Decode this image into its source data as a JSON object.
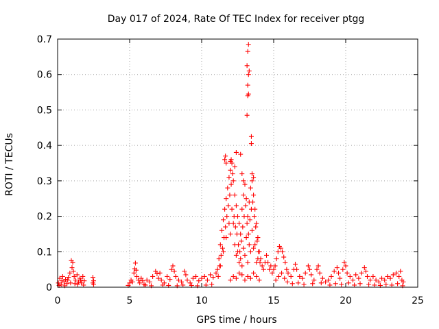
{
  "chart_data": {
    "type": "scatter",
    "title": "Day 017 of 2024, Rate Of TEC Index for receiver ptgg",
    "xlabel": "GPS time / hours",
    "ylabel": "ROTI / TECUs",
    "xlim": [
      0,
      25
    ],
    "ylim": [
      0,
      0.7
    ],
    "xticks": [
      0,
      5,
      10,
      15,
      20,
      25
    ],
    "xtick_labels": [
      "0",
      "5",
      "10",
      "15",
      "20",
      "25"
    ],
    "yticks": [
      0,
      0.1,
      0.2,
      0.3,
      0.4,
      0.5,
      0.6,
      0.7
    ],
    "ytick_labels": [
      "0",
      "0.1",
      "0.2",
      "0.3",
      "0.4",
      "0.5",
      "0.6",
      "0.7"
    ],
    "grid": true,
    "marker": "+",
    "series_color": "#ff0000",
    "series": [
      {
        "name": "ROTI",
        "points": [
          [
            0.05,
            0.012
          ],
          [
            0.15,
            0.025
          ],
          [
            0.25,
            0.008
          ],
          [
            0.35,
            0.03
          ],
          [
            0.45,
            0.015
          ],
          [
            0.55,
            0.022
          ],
          [
            0.65,
            0.01
          ],
          [
            0.75,
            0.028
          ],
          [
            0.85,
            0.04
          ],
          [
            0.95,
            0.075
          ],
          [
            1.0,
            0.055
          ],
          [
            1.05,
            0.07
          ],
          [
            1.1,
            0.045
          ],
          [
            1.15,
            0.03
          ],
          [
            1.25,
            0.02
          ],
          [
            1.35,
            0.035
          ],
          [
            1.45,
            0.015
          ],
          [
            1.55,
            0.025
          ],
          [
            1.65,
            0.012
          ],
          [
            1.75,
            0.03
          ],
          [
            1.85,
            0.018
          ],
          [
            0.1,
            0.005
          ],
          [
            0.3,
            0.018
          ],
          [
            0.5,
            0.004
          ],
          [
            0.7,
            0.02
          ],
          [
            0.9,
            0.012
          ],
          [
            1.2,
            0.01
          ],
          [
            1.4,
            0.008
          ],
          [
            1.6,
            0.02
          ],
          [
            1.8,
            0.006
          ],
          [
            2.45,
            0.028
          ],
          [
            2.45,
            0.012
          ],
          [
            2.5,
            0.018
          ],
          [
            2.5,
            0.008
          ],
          [
            4.9,
            0.005
          ],
          [
            5.0,
            0.012
          ],
          [
            5.1,
            0.02
          ],
          [
            5.2,
            0.015
          ],
          [
            5.3,
            0.04
          ],
          [
            5.35,
            0.052
          ],
          [
            5.4,
            0.068
          ],
          [
            5.45,
            0.048
          ],
          [
            5.5,
            0.03
          ],
          [
            5.6,
            0.02
          ],
          [
            5.7,
            0.012
          ],
          [
            5.8,
            0.025
          ],
          [
            5.9,
            0.018
          ],
          [
            6.0,
            0.008
          ],
          [
            6.2,
            0.02
          ],
          [
            6.4,
            0.015
          ],
          [
            6.6,
            0.03
          ],
          [
            6.8,
            0.045
          ],
          [
            6.9,
            0.038
          ],
          [
            7.0,
            0.025
          ],
          [
            7.1,
            0.04
          ],
          [
            7.2,
            0.02
          ],
          [
            7.4,
            0.012
          ],
          [
            7.6,
            0.03
          ],
          [
            7.8,
            0.022
          ],
          [
            7.9,
            0.05
          ],
          [
            8.0,
            0.06
          ],
          [
            8.1,
            0.045
          ],
          [
            8.2,
            0.03
          ],
          [
            8.4,
            0.02
          ],
          [
            8.6,
            0.015
          ],
          [
            8.8,
            0.045
          ],
          [
            8.9,
            0.035
          ],
          [
            9.0,
            0.02
          ],
          [
            9.2,
            0.012
          ],
          [
            9.4,
            0.025
          ],
          [
            9.6,
            0.03
          ],
          [
            9.8,
            0.018
          ],
          [
            10.0,
            0.025
          ],
          [
            10.2,
            0.03
          ],
          [
            10.4,
            0.02
          ],
          [
            10.6,
            0.035
          ],
          [
            10.8,
            0.028
          ],
          [
            11.0,
            0.04
          ],
          [
            6.1,
            0.006
          ],
          [
            6.5,
            0.004
          ],
          [
            7.3,
            0.006
          ],
          [
            7.7,
            0.005
          ],
          [
            8.3,
            0.004
          ],
          [
            8.7,
            0.006
          ],
          [
            9.3,
            0.005
          ],
          [
            9.7,
            0.004
          ],
          [
            10.3,
            0.006
          ],
          [
            10.7,
            0.008
          ],
          [
            11.1,
            0.05
          ],
          [
            11.2,
            0.08
          ],
          [
            11.3,
            0.12
          ],
          [
            11.4,
            0.16
          ],
          [
            11.5,
            0.19
          ],
          [
            11.6,
            0.22
          ],
          [
            11.7,
            0.25
          ],
          [
            11.8,
            0.28
          ],
          [
            11.9,
            0.31
          ],
          [
            12.0,
            0.33
          ],
          [
            12.1,
            0.35
          ],
          [
            12.2,
            0.3
          ],
          [
            12.3,
            0.26
          ],
          [
            12.4,
            0.23
          ],
          [
            12.5,
            0.2
          ],
          [
            12.6,
            0.18
          ],
          [
            12.7,
            0.15
          ],
          [
            12.8,
            0.22
          ],
          [
            12.9,
            0.26
          ],
          [
            13.0,
            0.29
          ],
          [
            13.1,
            0.25
          ],
          [
            13.2,
            0.2
          ],
          [
            13.3,
            0.24
          ],
          [
            13.4,
            0.28
          ],
          [
            13.5,
            0.3
          ],
          [
            13.6,
            0.26
          ],
          [
            13.7,
            0.22
          ],
          [
            13.8,
            0.18
          ],
          [
            13.9,
            0.14
          ],
          [
            14.0,
            0.1
          ],
          [
            14.1,
            0.08
          ],
          [
            14.2,
            0.06
          ],
          [
            14.3,
            0.05
          ],
          [
            14.4,
            0.07
          ],
          [
            14.5,
            0.09
          ],
          [
            14.6,
            0.07
          ],
          [
            14.7,
            0.05
          ],
          [
            14.8,
            0.06
          ],
          [
            14.9,
            0.04
          ],
          [
            15.0,
            0.05
          ],
          [
            11.15,
            0.03
          ],
          [
            11.25,
            0.06
          ],
          [
            11.35,
            0.09
          ],
          [
            11.45,
            0.11
          ],
          [
            11.55,
            0.14
          ],
          [
            11.65,
            0.17
          ],
          [
            11.75,
            0.2
          ],
          [
            11.85,
            0.23
          ],
          [
            11.95,
            0.26
          ],
          [
            12.05,
            0.29
          ],
          [
            12.15,
            0.32
          ],
          [
            12.25,
            0.2
          ],
          [
            12.35,
            0.17
          ],
          [
            12.45,
            0.15
          ],
          [
            12.55,
            0.12
          ],
          [
            12.65,
            0.1
          ],
          [
            12.75,
            0.13
          ],
          [
            12.85,
            0.17
          ],
          [
            12.95,
            0.2
          ],
          [
            13.05,
            0.23
          ],
          [
            13.15,
            0.18
          ],
          [
            13.25,
            0.15
          ],
          [
            13.35,
            0.19
          ],
          [
            13.45,
            0.22
          ],
          [
            13.55,
            0.24
          ],
          [
            13.65,
            0.2
          ],
          [
            13.75,
            0.17
          ],
          [
            13.85,
            0.13
          ],
          [
            13.95,
            0.1
          ],
          [
            14.05,
            0.07
          ],
          [
            11.3,
            0.06
          ],
          [
            11.5,
            0.1
          ],
          [
            11.7,
            0.14
          ],
          [
            11.9,
            0.18
          ],
          [
            12.1,
            0.22
          ],
          [
            12.3,
            0.12
          ],
          [
            12.5,
            0.1
          ],
          [
            12.7,
            0.08
          ],
          [
            12.9,
            0.11
          ],
          [
            13.1,
            0.14
          ],
          [
            13.3,
            0.12
          ],
          [
            13.5,
            0.16
          ],
          [
            13.7,
            0.12
          ],
          [
            13.9,
            0.08
          ],
          [
            12.0,
            0.15
          ],
          [
            12.2,
            0.18
          ],
          [
            12.4,
            0.09
          ],
          [
            12.6,
            0.07
          ],
          [
            12.8,
            0.06
          ],
          [
            13.0,
            0.09
          ],
          [
            13.2,
            0.07
          ],
          [
            13.4,
            0.1
          ],
          [
            13.6,
            0.11
          ],
          [
            13.8,
            0.07
          ],
          [
            11.6,
            0.36
          ],
          [
            11.65,
            0.37
          ],
          [
            11.7,
            0.35
          ],
          [
            12.0,
            0.355
          ],
          [
            12.05,
            0.36
          ],
          [
            12.3,
            0.34
          ],
          [
            12.4,
            0.38
          ],
          [
            12.7,
            0.375
          ],
          [
            12.8,
            0.32
          ],
          [
            12.9,
            0.3
          ],
          [
            13.5,
            0.32
          ],
          [
            13.6,
            0.31
          ],
          [
            13.45,
            0.405
          ],
          [
            13.45,
            0.425
          ],
          [
            13.15,
            0.485
          ],
          [
            13.2,
            0.54
          ],
          [
            13.25,
            0.545
          ],
          [
            13.2,
            0.57
          ],
          [
            13.25,
            0.6
          ],
          [
            13.15,
            0.625
          ],
          [
            13.3,
            0.61
          ],
          [
            13.2,
            0.665
          ],
          [
            13.25,
            0.685
          ],
          [
            12.0,
            0.02
          ],
          [
            12.2,
            0.03
          ],
          [
            12.4,
            0.025
          ],
          [
            12.6,
            0.04
          ],
          [
            12.8,
            0.035
          ],
          [
            13.0,
            0.02
          ],
          [
            13.2,
            0.03
          ],
          [
            13.4,
            0.025
          ],
          [
            13.6,
            0.04
          ],
          [
            13.8,
            0.03
          ],
          [
            14.0,
            0.02
          ],
          [
            15.1,
            0.06
          ],
          [
            15.2,
            0.08
          ],
          [
            15.3,
            0.1
          ],
          [
            15.4,
            0.115
          ],
          [
            15.5,
            0.11
          ],
          [
            15.6,
            0.1
          ],
          [
            15.7,
            0.085
          ],
          [
            15.8,
            0.07
          ],
          [
            15.9,
            0.05
          ],
          [
            16.0,
            0.04
          ],
          [
            16.2,
            0.03
          ],
          [
            16.4,
            0.05
          ],
          [
            16.5,
            0.065
          ],
          [
            16.6,
            0.05
          ],
          [
            16.8,
            0.03
          ],
          [
            17.0,
            0.025
          ],
          [
            17.2,
            0.04
          ],
          [
            17.4,
            0.06
          ],
          [
            17.5,
            0.05
          ],
          [
            17.6,
            0.035
          ],
          [
            17.8,
            0.02
          ],
          [
            18.0,
            0.05
          ],
          [
            18.1,
            0.06
          ],
          [
            18.2,
            0.04
          ],
          [
            18.4,
            0.025
          ],
          [
            18.6,
            0.015
          ],
          [
            18.8,
            0.02
          ],
          [
            19.0,
            0.03
          ],
          [
            19.2,
            0.045
          ],
          [
            19.4,
            0.055
          ],
          [
            19.5,
            0.04
          ],
          [
            19.6,
            0.025
          ],
          [
            19.8,
            0.05
          ],
          [
            19.9,
            0.07
          ],
          [
            20.0,
            0.06
          ],
          [
            20.1,
            0.04
          ],
          [
            20.3,
            0.03
          ],
          [
            20.5,
            0.02
          ],
          [
            20.7,
            0.035
          ],
          [
            20.9,
            0.025
          ],
          [
            21.1,
            0.04
          ],
          [
            21.3,
            0.055
          ],
          [
            21.4,
            0.045
          ],
          [
            21.5,
            0.03
          ],
          [
            21.7,
            0.02
          ],
          [
            21.9,
            0.03
          ],
          [
            22.1,
            0.02
          ],
          [
            22.3,
            0.015
          ],
          [
            22.5,
            0.025
          ],
          [
            22.7,
            0.02
          ],
          [
            22.9,
            0.03
          ],
          [
            23.1,
            0.025
          ],
          [
            23.3,
            0.035
          ],
          [
            23.5,
            0.04
          ],
          [
            23.7,
            0.03
          ],
          [
            23.8,
            0.045
          ],
          [
            23.9,
            0.02
          ],
          [
            24.0,
            0.015
          ],
          [
            15.15,
            0.02
          ],
          [
            15.35,
            0.03
          ],
          [
            15.55,
            0.04
          ],
          [
            15.75,
            0.025
          ],
          [
            15.95,
            0.015
          ],
          [
            16.3,
            0.01
          ],
          [
            16.7,
            0.012
          ],
          [
            17.1,
            0.008
          ],
          [
            17.7,
            0.01
          ],
          [
            18.3,
            0.012
          ],
          [
            18.9,
            0.006
          ],
          [
            19.3,
            0.01
          ],
          [
            19.7,
            0.008
          ],
          [
            20.2,
            0.012
          ],
          [
            20.6,
            0.006
          ],
          [
            21.0,
            0.01
          ],
          [
            21.6,
            0.008
          ],
          [
            22.0,
            0.006
          ],
          [
            22.4,
            0.005
          ],
          [
            22.8,
            0.008
          ],
          [
            23.2,
            0.006
          ],
          [
            23.6,
            0.01
          ],
          [
            23.95,
            0.004
          ]
        ]
      }
    ]
  }
}
